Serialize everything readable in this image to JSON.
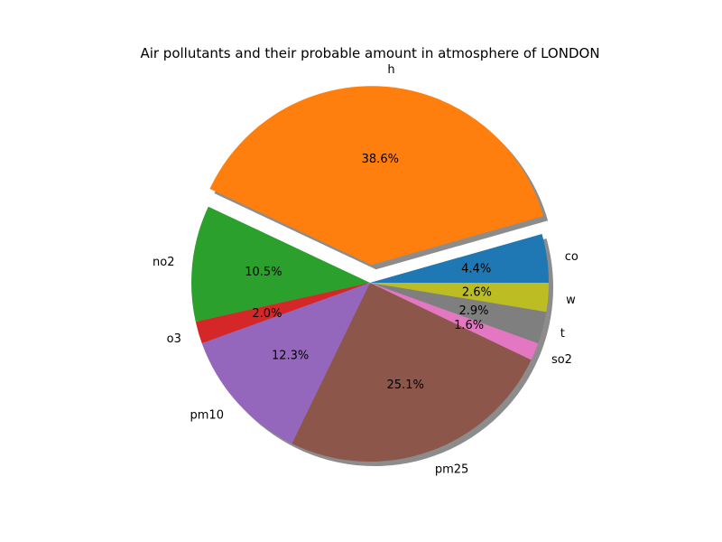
{
  "chart_data": {
    "type": "pie",
    "title": "Air pollutants and their probable amount in atmosphere of LONDON",
    "slices": [
      {
        "label": "co",
        "value": 4.4,
        "pct_text": "4.4%",
        "color": "#1f77b4"
      },
      {
        "label": "h",
        "value": 38.6,
        "pct_text": "38.6%",
        "color": "#ff7f0e"
      },
      {
        "label": "no2",
        "value": 10.5,
        "pct_text": "10.5%",
        "color": "#2ca02c"
      },
      {
        "label": "o3",
        "value": 2.0,
        "pct_text": "2.0%",
        "color": "#d62728"
      },
      {
        "label": "pm10",
        "value": 12.3,
        "pct_text": "12.3%",
        "color": "#9467bd"
      },
      {
        "label": "pm25",
        "value": 25.1,
        "pct_text": "25.1%",
        "color": "#8c564b"
      },
      {
        "label": "so2",
        "value": 1.6,
        "pct_text": "1.6%",
        "color": "#e377c2"
      },
      {
        "label": "t",
        "value": 2.9,
        "pct_text": "2.9%",
        "color": "#7f7f7f"
      },
      {
        "label": "w",
        "value": 2.6,
        "pct_text": "2.6%",
        "color": "#bcbd22"
      }
    ],
    "exploded": [
      "h"
    ],
    "shadow": true,
    "direction": "counterclockwise",
    "start": "east"
  }
}
